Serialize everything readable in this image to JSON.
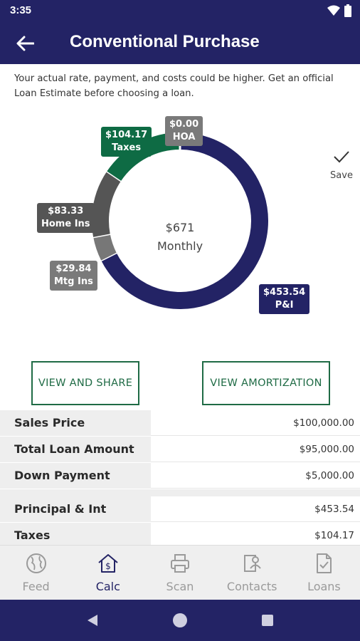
{
  "status_bar": {
    "time": "3:35",
    "wifi_icon": "wifi-icon",
    "battery_icon": "battery-icon"
  },
  "app_bar": {
    "title": "Conventional Purchase",
    "back_icon": "arrow-left-icon"
  },
  "disclaimer": "Your actual rate, payment, and costs could be higher. Get an official Loan Estimate before choosing a loan.",
  "chart_data": {
    "type": "pie",
    "center_amount": "$671",
    "center_label": "Monthly",
    "slices": [
      {
        "label": "P&I",
        "value": 453.54,
        "display": "$453.54",
        "color": "#232365"
      },
      {
        "label": "Mtg Ins",
        "value": 29.84,
        "display": "$29.84",
        "color": "#777777"
      },
      {
        "label": "Home Ins",
        "value": 83.33,
        "display": "$83.33",
        "color": "#555555"
      },
      {
        "label": "Taxes",
        "value": 104.17,
        "display": "$104.17",
        "color": "#0e6b44"
      },
      {
        "label": "HOA",
        "value": 0.0,
        "display": "$0.00",
        "color": "#777777"
      }
    ]
  },
  "save": {
    "label": "Save",
    "icon": "check-icon"
  },
  "buttons": {
    "view_share": "VIEW AND SHARE",
    "view_amortization": "VIEW AMORTIZATION"
  },
  "summary_rows": [
    {
      "label": "Sales Price",
      "value": "$100,000.00"
    },
    {
      "label": "Total Loan Amount",
      "value": "$95,000.00"
    },
    {
      "label": "Down Payment",
      "value": "$5,000.00"
    }
  ],
  "payment_rows": [
    {
      "label": "Principal & Int",
      "value": "$453.54"
    },
    {
      "label": "Taxes",
      "value": "$104.17"
    }
  ],
  "bottom_nav": [
    {
      "label": "Feed",
      "icon": "globe-icon"
    },
    {
      "label": "Calc",
      "icon": "calc-house-icon"
    },
    {
      "label": "Scan",
      "icon": "printer-icon"
    },
    {
      "label": "Contacts",
      "icon": "contacts-icon"
    },
    {
      "label": "Loans",
      "icon": "document-icon"
    }
  ],
  "colors": {
    "primary": "#232365",
    "accent_green": "#1f6b45"
  }
}
